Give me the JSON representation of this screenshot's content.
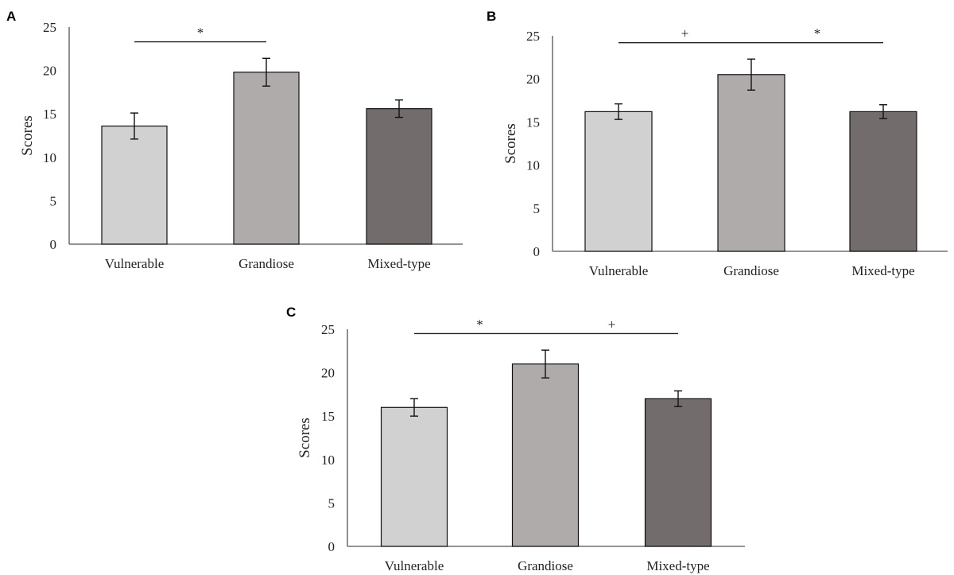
{
  "colors": {
    "Vulnerable": "#d2d1d2",
    "Grandiose": "#afabab",
    "Mixed-type": "#726c6c"
  },
  "chart_data": [
    {
      "type": "bar",
      "panel": "A",
      "categories": [
        "Vulnerable",
        "Grandiose",
        "Mixed-type"
      ],
      "values": [
        13.6,
        19.8,
        15.6
      ],
      "errors": [
        1.5,
        1.6,
        1.0
      ],
      "ylabel": "Scores",
      "ylim": [
        0,
        25
      ],
      "yticks": [
        0,
        5,
        10,
        15,
        20,
        25
      ],
      "grid": false,
      "significance": [
        {
          "from": "Vulnerable",
          "to": "Grandiose",
          "symbol": "*"
        }
      ]
    },
    {
      "type": "bar",
      "panel": "B",
      "categories": [
        "Vulnerable",
        "Grandiose",
        "Mixed-type"
      ],
      "values": [
        16.2,
        20.5,
        16.2
      ],
      "errors": [
        0.9,
        1.8,
        0.8
      ],
      "ylabel": "Scores",
      "ylim": [
        0,
        25
      ],
      "yticks": [
        0,
        5,
        10,
        15,
        20,
        25
      ],
      "grid": false,
      "significance": [
        {
          "from": "Vulnerable",
          "to": "Grandiose",
          "symbol": "+"
        },
        {
          "from": "Grandiose",
          "to": "Mixed-type",
          "symbol": "*"
        }
      ]
    },
    {
      "type": "bar",
      "panel": "C",
      "categories": [
        "Vulnerable",
        "Grandiose",
        "Mixed-type"
      ],
      "values": [
        16.0,
        21.0,
        17.0
      ],
      "errors": [
        1.0,
        1.6,
        0.9
      ],
      "ylabel": "Scores",
      "ylim": [
        0,
        25
      ],
      "yticks": [
        0,
        5,
        10,
        15,
        20,
        25
      ],
      "grid": false,
      "significance": [
        {
          "from": "Vulnerable",
          "to": "Grandiose",
          "symbol": "*"
        },
        {
          "from": "Grandiose",
          "to": "Mixed-type",
          "symbol": "+"
        }
      ]
    }
  ]
}
